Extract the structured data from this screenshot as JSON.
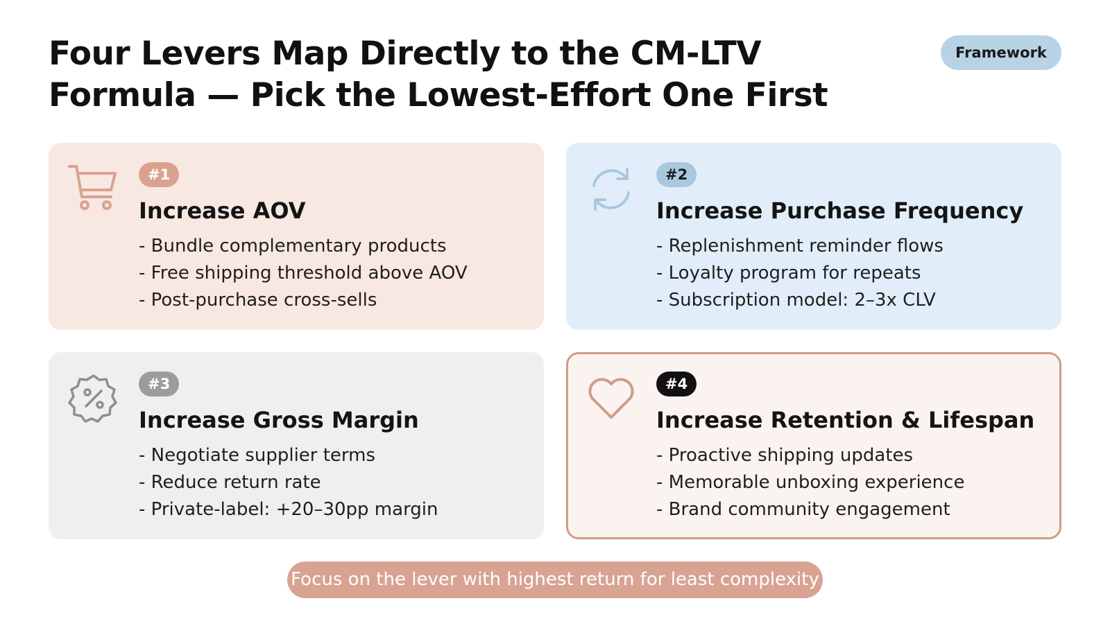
{
  "title_line1": "Four Levers Map Directly to the CM-LTV",
  "title_line2": "Formula — Pick the Lowest-Effort One First",
  "tag": "Framework",
  "cards": [
    {
      "badge": "#1",
      "title": "Increase AOV",
      "icon": "shopping-cart-icon",
      "accent": "#d9a28f",
      "bullets": [
        "- Bundle complementary products",
        "- Free shipping threshold above AOV",
        "- Post-purchase cross-sells"
      ]
    },
    {
      "badge": "#2",
      "title": "Increase Purchase Frequency",
      "icon": "refresh-icon",
      "accent": "#a9c8e0",
      "bullets": [
        "- Replenishment reminder flows",
        "- Loyalty program for repeats",
        "- Subscription model: 2–3x CLV"
      ]
    },
    {
      "badge": "#3",
      "title": "Increase Gross Margin",
      "icon": "percent-badge-icon",
      "accent": "#9c9c9c",
      "bullets": [
        "- Negotiate supplier terms",
        "- Reduce return rate",
        "- Private-label: +20–30pp margin"
      ]
    },
    {
      "badge": "#4",
      "title": "Increase Retention & Lifespan",
      "icon": "heart-icon",
      "accent": "#111111",
      "bullets": [
        "- Proactive shipping updates",
        "- Memorable unboxing experience",
        "- Brand community engagement"
      ]
    }
  ],
  "footer": "Focus on the lever with highest return for least complexity"
}
